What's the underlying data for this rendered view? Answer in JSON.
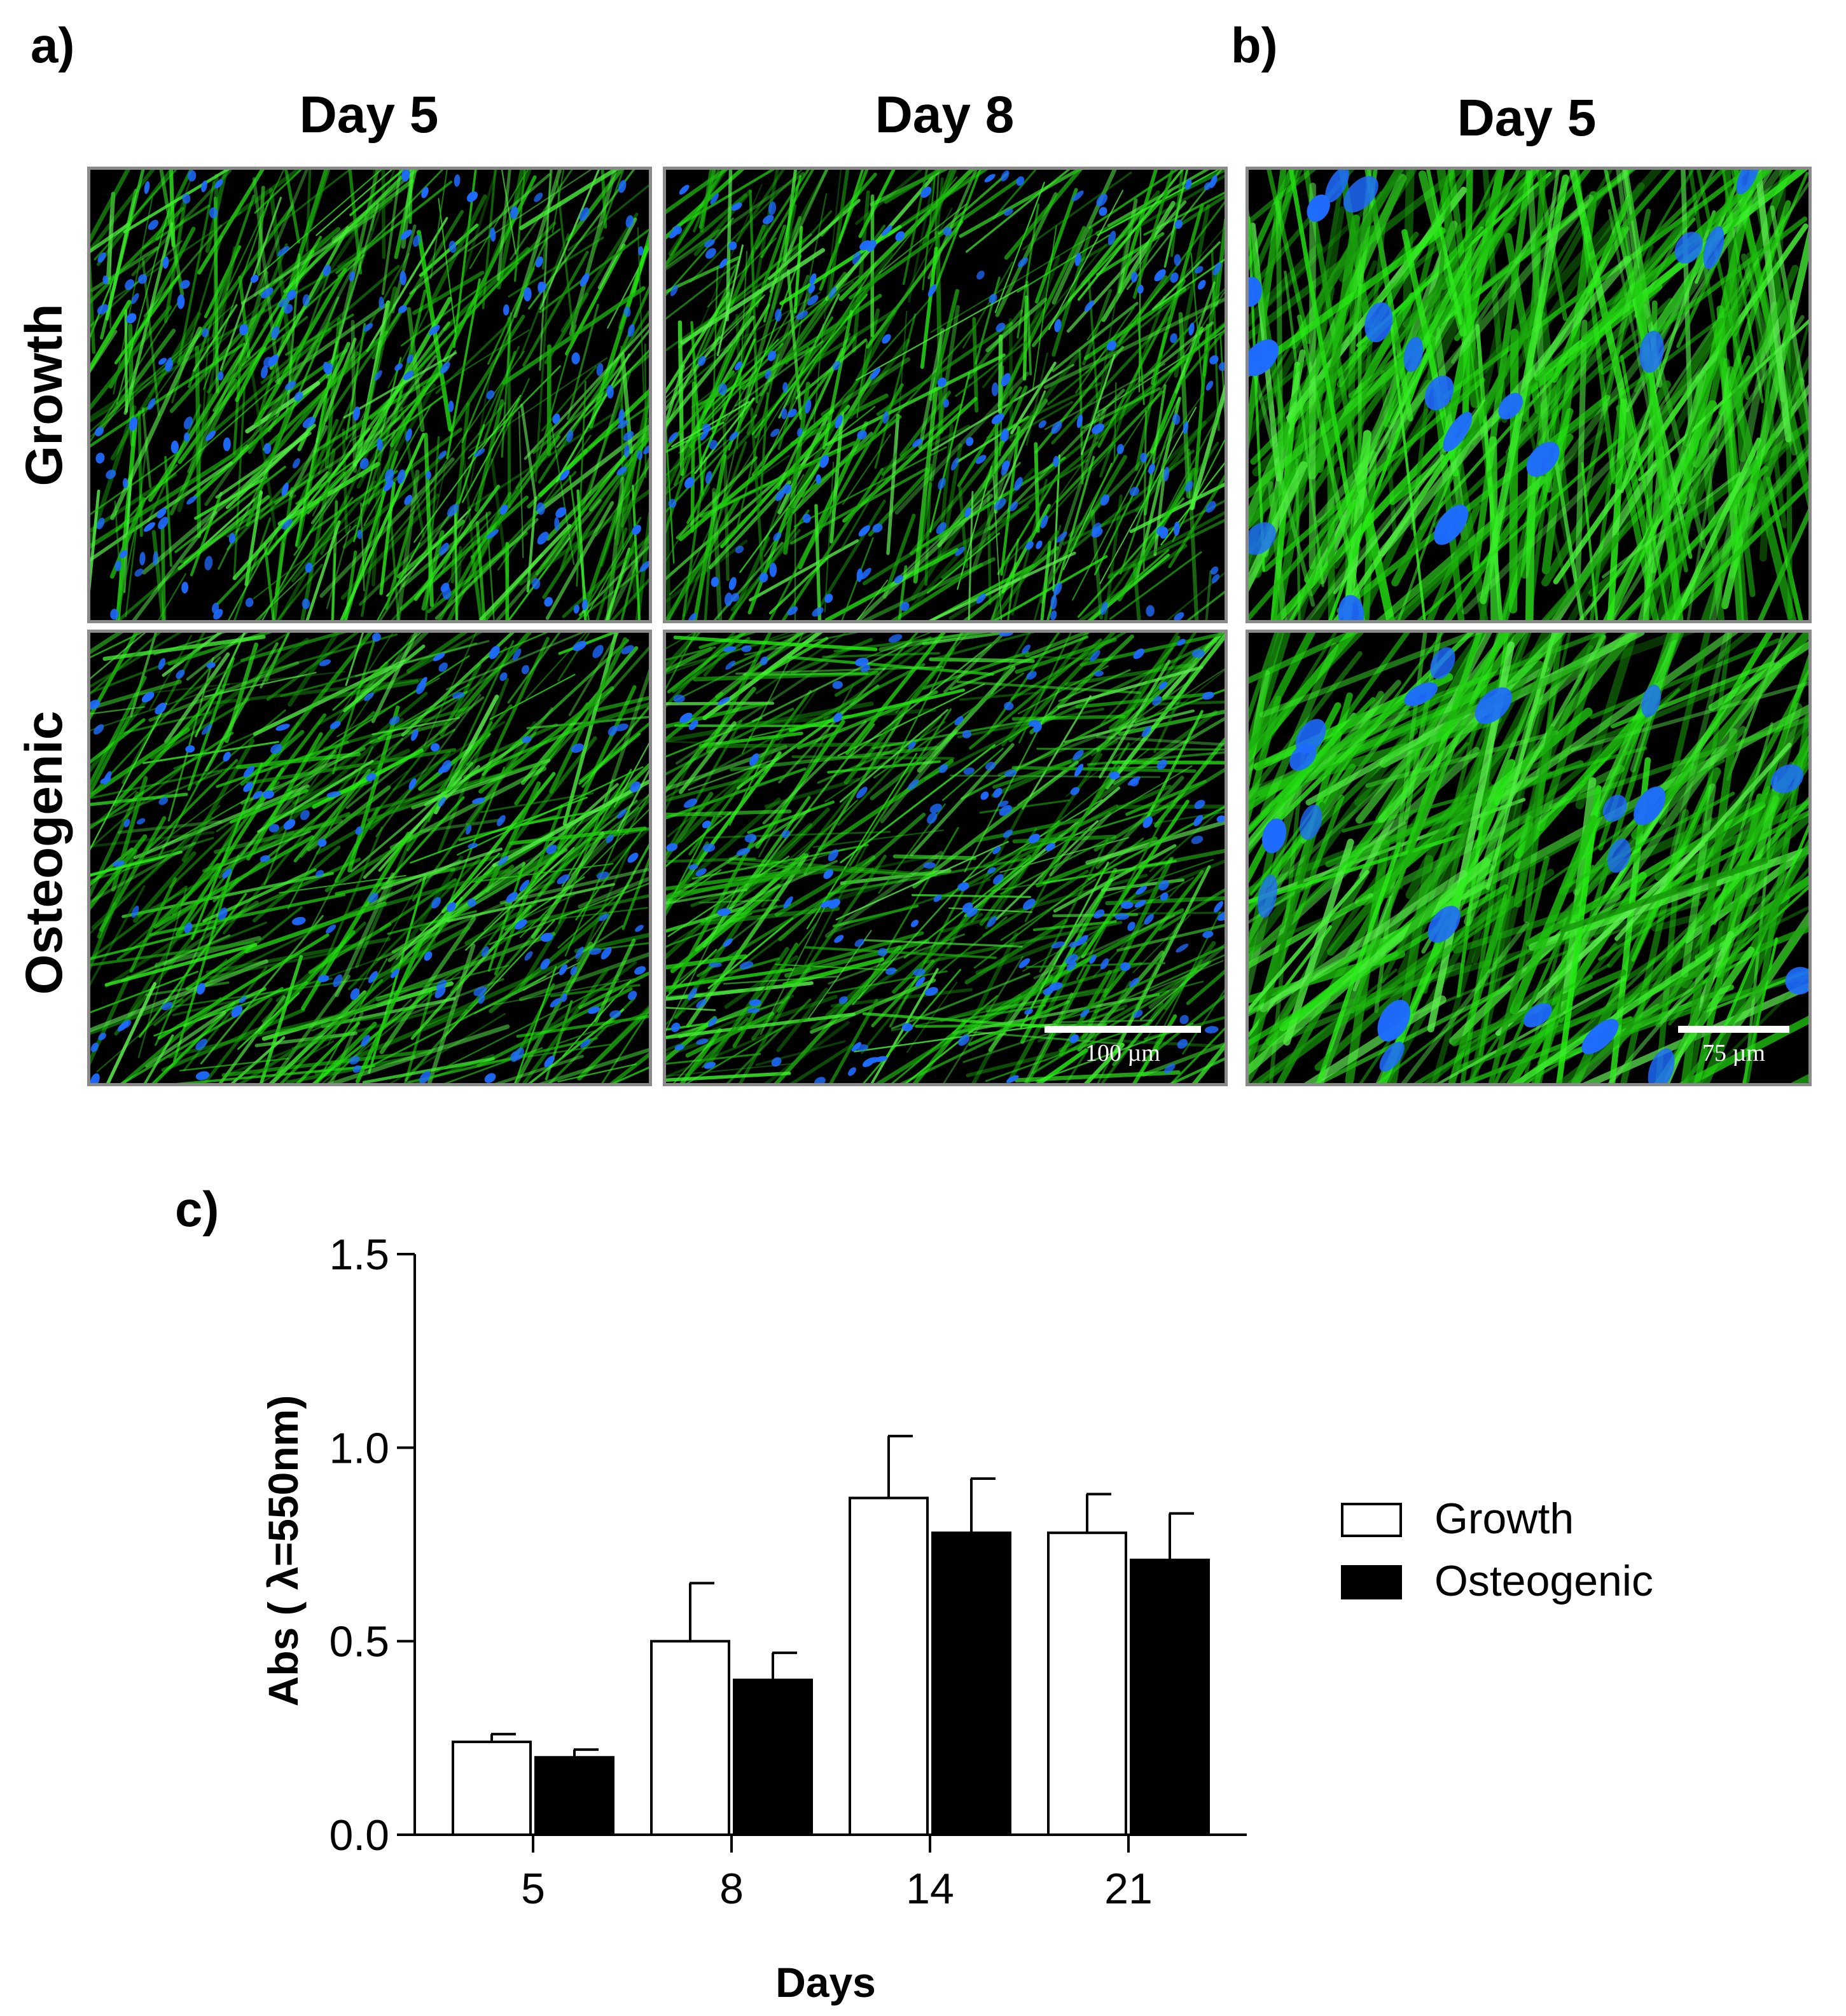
{
  "panels": {
    "a": {
      "letter": "a)"
    },
    "b": {
      "letter": "b)"
    },
    "c": {
      "letter": "c)"
    }
  },
  "column_headers": [
    "Day 5",
    "Day 8",
    "Day 5"
  ],
  "row_headers": [
    "Growth",
    "Osteogenic"
  ],
  "colors": {
    "actin": "#22c21a",
    "nuclei": "#1e6bff",
    "background": "#000000",
    "panel_border": "#8a8a8a"
  },
  "scale_bars": [
    {
      "label": "100 µm"
    },
    {
      "label": "75 µm"
    }
  ],
  "chart_data": {
    "type": "bar",
    "categories": [
      "5",
      "8",
      "14",
      "21"
    ],
    "xlabel": "Days",
    "ylabel": "Abs ( λ=550nm)",
    "ylim": [
      0,
      1.5
    ],
    "yticks": [
      "0.0",
      "0.5",
      "1.0",
      "1.5"
    ],
    "legend_position": "right",
    "grid": false,
    "series": [
      {
        "name": "Growth",
        "fill": "#ffffff",
        "values": [
          0.24,
          0.5,
          0.87,
          0.78
        ],
        "errors": [
          0.02,
          0.15,
          0.16,
          0.1
        ]
      },
      {
        "name": "Osteogenic",
        "fill": "#000000",
        "values": [
          0.2,
          0.4,
          0.78,
          0.71
        ],
        "errors": [
          0.02,
          0.07,
          0.14,
          0.12
        ]
      }
    ]
  }
}
